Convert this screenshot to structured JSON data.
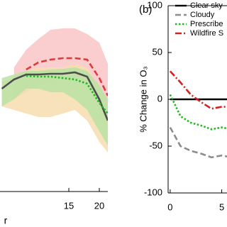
{
  "chart_data": [
    {
      "type": "line",
      "xlabel": "r",
      "x": [
        4,
        6,
        8,
        10,
        12,
        14,
        16,
        18,
        20,
        21.4
      ],
      "xlim": [
        3.7,
        21.4
      ],
      "xticks": [
        15,
        20
      ],
      "ylim": [
        0,
        270
      ],
      "bands": [
        {
          "color": "#f9c6c6",
          "upper": [
            null,
            175,
            200,
            215,
            228,
            230,
            230,
            222,
            210,
            180
          ],
          "lower": [
            null,
            130,
            140,
            150,
            155,
            160,
            160,
            152,
            110,
            90
          ]
        },
        {
          "color": "#f7ddb0",
          "upper": [
            155,
            160,
            170,
            175,
            175,
            175,
            180,
            175,
            145,
            130
          ],
          "lower": [
            120,
            115,
            110,
            105,
            105,
            110,
            115,
            100,
            70,
            55
          ]
        },
        {
          "color": "#b9e2a4",
          "upper": [
            160,
            165,
            170,
            170,
            172,
            173,
            175,
            170,
            150,
            130
          ],
          "lower": [
            120,
            130,
            145,
            145,
            140,
            140,
            130,
            115,
            85,
            65
          ]
        }
      ],
      "series": [
        {
          "color": "#4d4d4d",
          "dash": "solid",
          "values": [
            145,
            158,
            165,
            165,
            166,
            166,
            168,
            162,
            130,
            100
          ]
        },
        {
          "color": "#e03a3a",
          "dash": "dashed",
          "values": [
            null,
            null,
            172,
            182,
            186,
            188,
            188,
            186,
            160,
            135
          ]
        },
        {
          "color": "#22b822",
          "dash": "dotted",
          "values": [
            null,
            null,
            163,
            162,
            162,
            160,
            158,
            152,
            125,
            110
          ]
        }
      ]
    },
    {
      "type": "line",
      "panel_label": "(b)",
      "ylabel": "% Change in O₃",
      "x": [
        0,
        1,
        2,
        3,
        4,
        5,
        6
      ],
      "xlim": [
        -0.2,
        6.2
      ],
      "xticks": [
        0,
        5
      ],
      "ylim": [
        -100,
        100
      ],
      "yticks": [
        -100,
        -50,
        0,
        50,
        100
      ],
      "series": [
        {
          "name": "Clear sky",
          "color": "#000000",
          "dash": "solid",
          "values": [
            0,
            0,
            0,
            0,
            0,
            0,
            0
          ]
        },
        {
          "name": "Cloudy",
          "color": "#8c8c8c",
          "dash": "dashed",
          "values": [
            -30,
            -50,
            -55,
            -58,
            -62,
            -60,
            -62
          ]
        },
        {
          "name": "Prescribe",
          "color": "#22b822",
          "dash": "dotted",
          "values": [
            5,
            -18,
            -25,
            -28,
            -32,
            -30,
            -32
          ]
        },
        {
          "name": "Wildfire S",
          "color": "#d42020",
          "dash": "dashdot",
          "values": [
            30,
            18,
            5,
            -3,
            -10,
            -8,
            -8
          ]
        }
      ]
    }
  ]
}
